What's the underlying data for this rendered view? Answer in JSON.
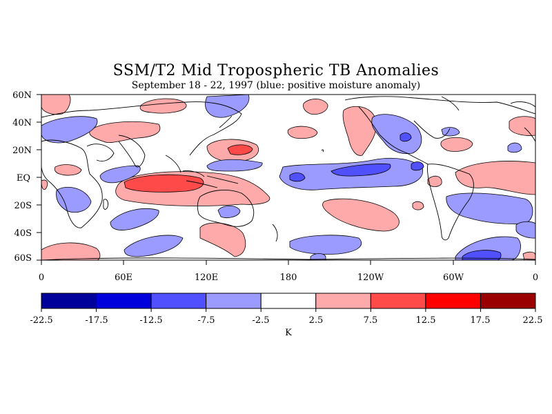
{
  "title": "SSM/T2 Mid Tropospheric TB Anomalies",
  "subtitle": "September 18 - 22, 1997 (blue: positive moisture anomaly)",
  "lat_labels": [
    "60N",
    "40N",
    "20N",
    "EQ",
    "20S",
    "40S",
    "60S"
  ],
  "lon_labels": [
    "0",
    "60E",
    "120E",
    "180",
    "120W",
    "60W",
    "0"
  ],
  "colorbar": {
    "unit_label": "K",
    "tick_labels": [
      "-22.5",
      "-17.5",
      "-12.5",
      "-7.5",
      "-2.5",
      "2.5",
      "7.5",
      "12.5",
      "17.5",
      "22.5"
    ],
    "colors": [
      "#00009a",
      "#0000dc",
      "#5050ff",
      "#9a9aff",
      "#ffffff",
      "#ffaaaa",
      "#ff4a4a",
      "#ff0000",
      "#9a0000"
    ]
  },
  "legend_note": "blue: positive moisture anomaly"
}
